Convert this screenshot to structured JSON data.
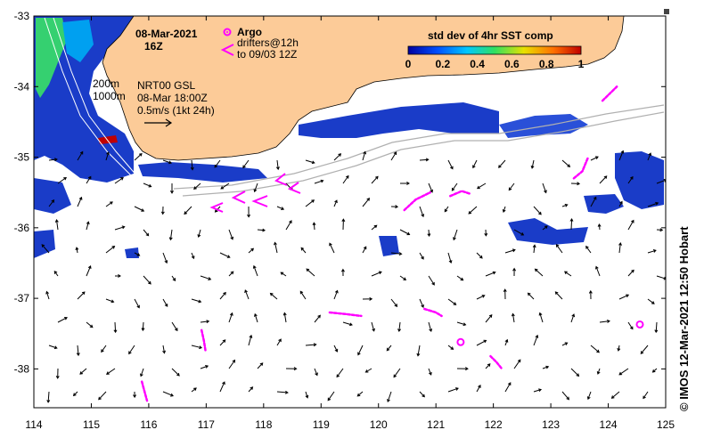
{
  "map": {
    "date": "08-Mar-2021",
    "hour": "16Z",
    "legend_title": "std dev of 4hr SST comp",
    "colorbar_ticks": [
      "0",
      "0.2",
      "0.4",
      "0.6",
      "0.8",
      "1"
    ],
    "colorbar_colors": [
      "#0000a0",
      "#0050ff",
      "#00c8ff",
      "#30e060",
      "#e8e000",
      "#ff7000",
      "#c00000"
    ],
    "argo_label": "Argo",
    "drifters_label": "drifters@12h",
    "drifters_to": "to 09/03 12Z",
    "isobath_200": "200m",
    "isobath_1000": "1000m",
    "product_label": "NRT00 GSL",
    "product_time": "08-Mar 18:00Z",
    "scale_label": "0.5m/s (1kt 24h)",
    "credit": "© IMOS 12-Mar-2021 12:50 Hobart",
    "land_color": "#fccb98",
    "argo_color": "#ff00ff"
  },
  "chart_data": {
    "type": "map",
    "x_ticks": [
      "114",
      "115",
      "116",
      "117",
      "118",
      "119",
      "120",
      "121",
      "122",
      "123",
      "124",
      "125"
    ],
    "y_ticks": [
      "-33",
      "-34",
      "-35",
      "-36",
      "-37",
      "-38"
    ],
    "xlim": [
      114,
      125
    ],
    "ylim": [
      -38.55,
      -33
    ],
    "argo_floats": [
      [
        121.43,
        -37.62
      ],
      [
        124.55,
        -37.37
      ]
    ],
    "drifter_tracks": [
      [
        [
          115.88,
          -38.18
        ],
        [
          115.93,
          -38.33
        ],
        [
          115.97,
          -38.45
        ]
      ],
      [
        [
          116.92,
          -37.45
        ],
        [
          116.96,
          -37.6
        ],
        [
          116.99,
          -37.75
        ]
      ],
      [
        [
          119.15,
          -37.2
        ],
        [
          119.4,
          -37.22
        ],
        [
          119.7,
          -37.25
        ]
      ],
      [
        [
          120.8,
          -37.15
        ],
        [
          121.0,
          -37.2
        ],
        [
          121.1,
          -37.25
        ]
      ],
      [
        [
          121.95,
          -37.82
        ],
        [
          122.05,
          -37.9
        ],
        [
          122.15,
          -38.0
        ]
      ],
      [
        [
          120.45,
          -35.75
        ],
        [
          120.65,
          -35.6
        ],
        [
          120.9,
          -35.5
        ]
      ],
      [
        [
          121.25,
          -35.55
        ],
        [
          121.45,
          -35.48
        ],
        [
          121.6,
          -35.52
        ]
      ],
      [
        [
          123.4,
          -35.3
        ],
        [
          123.55,
          -35.2
        ],
        [
          123.65,
          -35.0
        ]
      ],
      [
        [
          123.9,
          -34.2
        ],
        [
          124.05,
          -34.08
        ],
        [
          124.15,
          -34.0
        ]
      ]
    ]
  }
}
